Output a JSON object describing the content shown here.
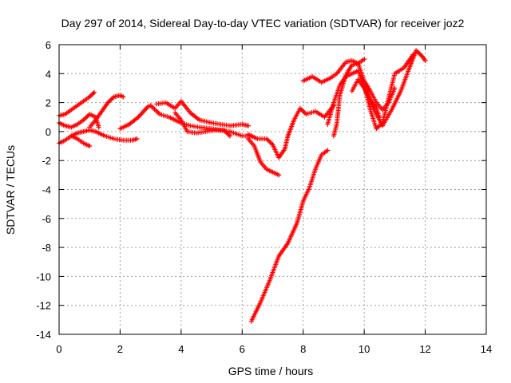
{
  "chart_data": {
    "type": "scatter",
    "title": "Day 297 of 2014, Sidereal Day-to-day VTEC variation (SDTVAR) for receiver joz2",
    "xlabel": "GPS time / hours",
    "ylabel": "SDTVAR / TECUs",
    "xlim": [
      0,
      14
    ],
    "ylim": [
      -14,
      6
    ],
    "xticks": [
      0,
      2,
      4,
      6,
      8,
      10,
      12,
      14
    ],
    "yticks": [
      -14,
      -12,
      -10,
      -8,
      -6,
      -4,
      -2,
      0,
      2,
      4,
      6
    ],
    "grid": true,
    "marker": "plus",
    "color": "#ff0000",
    "series": [
      {
        "x": [
          0.0,
          0.2,
          0.4,
          0.6,
          0.8,
          1.0,
          1.15
        ],
        "y": [
          1.1,
          1.2,
          1.5,
          1.8,
          2.1,
          2.4,
          2.7
        ]
      },
      {
        "x": [
          0.0,
          0.2,
          0.4,
          0.6,
          0.8,
          1.0,
          1.2,
          1.3
        ],
        "y": [
          0.6,
          0.4,
          0.3,
          0.5,
          0.8,
          1.2,
          1.0,
          0.3
        ]
      },
      {
        "x": [
          1.0,
          1.2,
          1.4,
          1.6,
          1.8,
          2.0,
          2.1
        ],
        "y": [
          0.3,
          0.8,
          1.4,
          2.0,
          2.4,
          2.5,
          2.4
        ]
      },
      {
        "x": [
          0.0,
          0.2,
          0.4,
          0.6,
          0.8,
          1.0,
          1.2,
          1.5,
          1.8,
          2.1,
          2.4,
          2.55
        ],
        "y": [
          -0.8,
          -0.6,
          -0.3,
          -0.1,
          0.0,
          0.1,
          0.0,
          -0.3,
          -0.5,
          -0.6,
          -0.6,
          -0.5
        ]
      },
      {
        "x": [
          0.4,
          0.6,
          0.8,
          1.0
        ],
        "y": [
          -0.3,
          -0.5,
          -0.8,
          -1.0
        ]
      },
      {
        "x": [
          2.0,
          2.3,
          2.6,
          2.9,
          3.0,
          3.3,
          3.6,
          4.0,
          4.3,
          4.6,
          5.0,
          5.3,
          5.6,
          6.0,
          6.3
        ],
        "y": [
          0.2,
          0.5,
          1.0,
          1.7,
          1.8,
          1.2,
          1.0,
          0.6,
          0.4,
          0.3,
          0.2,
          0.1,
          0.0,
          -0.3,
          -0.3
        ]
      },
      {
        "x": [
          3.2,
          3.5,
          3.8,
          4.0,
          4.3,
          4.6,
          5.0,
          5.3,
          5.6,
          6.0,
          6.2
        ],
        "y": [
          1.9,
          2.0,
          1.6,
          2.1,
          1.3,
          0.8,
          0.6,
          0.5,
          0.4,
          0.5,
          0.4
        ]
      },
      {
        "x": [
          3.8,
          4.0,
          4.2,
          4.5,
          4.8,
          5.1,
          5.4,
          5.6
        ],
        "y": [
          1.3,
          0.8,
          0.0,
          -0.1,
          0.0,
          0.1,
          0.1,
          -0.3
        ]
      },
      {
        "x": [
          6.2,
          6.4,
          6.6,
          6.8,
          7.0,
          7.2
        ],
        "y": [
          -0.5,
          -1.0,
          -2.1,
          -2.6,
          -2.8,
          -3.0
        ]
      },
      {
        "x": [
          6.2,
          6.5,
          6.8,
          7.0,
          7.2,
          7.4,
          7.5
        ],
        "y": [
          -0.2,
          -0.5,
          -0.5,
          -0.9,
          -1.8,
          -1.2,
          -0.3
        ]
      },
      {
        "x": [
          6.3,
          6.6,
          6.9,
          7.2,
          7.5,
          7.8,
          8.0,
          8.2,
          8.4,
          8.6,
          8.8
        ],
        "y": [
          -13.1,
          -11.8,
          -10.3,
          -8.6,
          -7.7,
          -6.3,
          -4.8,
          -3.9,
          -2.6,
          -1.6,
          -1.3
        ]
      },
      {
        "x": [
          7.5,
          7.7,
          7.9,
          8.1,
          8.4,
          8.7,
          9.0
        ],
        "y": [
          -0.3,
          0.8,
          1.6,
          1.2,
          1.4,
          1.0,
          1.8
        ]
      },
      {
        "x": [
          8.0,
          8.3,
          8.6,
          8.9,
          9.1,
          9.4,
          9.6,
          9.8,
          10.0
        ],
        "y": [
          3.5,
          3.8,
          3.4,
          3.7,
          4.0,
          4.8,
          4.9,
          4.7,
          5.0
        ]
      },
      {
        "x": [
          9.0,
          9.1,
          9.2,
          9.4,
          9.6,
          9.8,
          10.0,
          10.2,
          10.4,
          10.6,
          10.8,
          11.0
        ],
        "y": [
          -0.3,
          0.5,
          2.5,
          3.9,
          4.6,
          4.7,
          3.5,
          2.8,
          2.0,
          1.5,
          2.0,
          3.0
        ]
      },
      {
        "x": [
          8.8,
          9.0,
          9.2,
          9.4,
          9.6,
          9.8,
          10.0,
          10.3,
          10.6,
          10.9,
          11.2,
          11.5,
          11.7,
          11.9,
          12.0
        ],
        "y": [
          0.5,
          2.0,
          3.2,
          3.8,
          4.0,
          4.2,
          3.2,
          1.6,
          0.4,
          1.5,
          2.8,
          4.5,
          5.6,
          5.2,
          4.9
        ]
      },
      {
        "x": [
          10.0,
          10.2,
          10.4,
          10.6,
          10.8,
          11.0,
          11.3,
          11.6
        ],
        "y": [
          3.2,
          1.5,
          0.2,
          0.6,
          2.3,
          4.0,
          4.4,
          5.3
        ]
      },
      {
        "x": [
          9.6,
          9.8,
          10.0,
          10.2,
          10.4,
          10.5
        ],
        "y": [
          2.8,
          3.6,
          3.0,
          2.2,
          1.6,
          1.0
        ]
      }
    ]
  }
}
